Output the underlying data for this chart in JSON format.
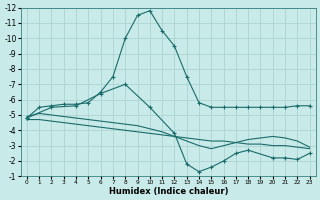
{
  "xlabel": "Humidex (Indice chaleur)",
  "bg_color": "#c8eae8",
  "grid_color": "#a8d0ce",
  "line_color": "#1a6b6b",
  "xlim": [
    -0.5,
    23.5
  ],
  "ylim_bottom": -12,
  "ylim_top": -1,
  "xticks": [
    0,
    1,
    2,
    3,
    4,
    5,
    6,
    7,
    8,
    9,
    10,
    11,
    12,
    13,
    14,
    15,
    16,
    17,
    18,
    19,
    20,
    21,
    22,
    23
  ],
  "yticks": [
    -1,
    -2,
    -3,
    -4,
    -5,
    -6,
    -7,
    -8,
    -9,
    -10,
    -11,
    -12
  ],
  "series": [
    {
      "x": [
        0,
        1,
        2,
        3,
        4,
        5,
        6,
        7,
        8,
        9,
        10,
        11,
        12,
        13,
        14,
        15,
        16,
        17,
        18,
        19,
        20,
        21,
        22,
        23
      ],
      "y": [
        -4.7,
        -4.7,
        -4.6,
        -4.5,
        -4.4,
        -4.3,
        -4.2,
        -4.1,
        -4.0,
        -3.9,
        -3.8,
        -3.7,
        -3.6,
        -3.5,
        -3.4,
        -3.3,
        -3.3,
        -3.2,
        -3.1,
        -3.1,
        -3.0,
        -3.0,
        -2.9,
        -2.8
      ],
      "marker": null
    },
    {
      "x": [
        0,
        1,
        2,
        3,
        4,
        5,
        6,
        7,
        8,
        9,
        10,
        11,
        12,
        13,
        14,
        15,
        16,
        17,
        18,
        19,
        20,
        21,
        22,
        23
      ],
      "y": [
        -4.9,
        -5.1,
        -5.0,
        -4.9,
        -4.8,
        -4.7,
        -4.6,
        -4.5,
        -4.4,
        -4.3,
        -4.1,
        -3.9,
        -3.6,
        -3.3,
        -3.0,
        -2.8,
        -3.0,
        -3.2,
        -3.4,
        -3.5,
        -3.6,
        -3.5,
        -3.3,
        -2.9
      ],
      "marker": null
    },
    {
      "x": [
        0,
        1,
        2,
        3,
        4,
        5,
        6,
        7,
        8,
        9,
        10,
        11,
        12,
        13,
        14,
        15,
        16,
        17,
        18,
        19,
        20,
        21,
        22,
        23
      ],
      "y": [
        -4.8,
        -5.5,
        -5.6,
        -5.7,
        -5.7,
        -5.8,
        -6.5,
        -7.5,
        -10.0,
        -11.5,
        -11.8,
        -10.5,
        -9.5,
        -7.5,
        -5.8,
        -5.5,
        -5.5,
        -5.5,
        -5.5,
        -5.5,
        -5.5,
        -5.5,
        -5.6,
        -5.6
      ],
      "marker": "+"
    },
    {
      "x": [
        0,
        2,
        4,
        6,
        8,
        10,
        12,
        13,
        14,
        15,
        16,
        17,
        18,
        20,
        21,
        22,
        23
      ],
      "y": [
        -4.8,
        -5.5,
        -5.6,
        -6.4,
        -7.0,
        -5.5,
        -3.8,
        -1.8,
        -1.3,
        -1.6,
        -2.0,
        -2.5,
        -2.7,
        -2.2,
        -2.2,
        -2.1,
        -2.5
      ],
      "marker": "+"
    }
  ]
}
